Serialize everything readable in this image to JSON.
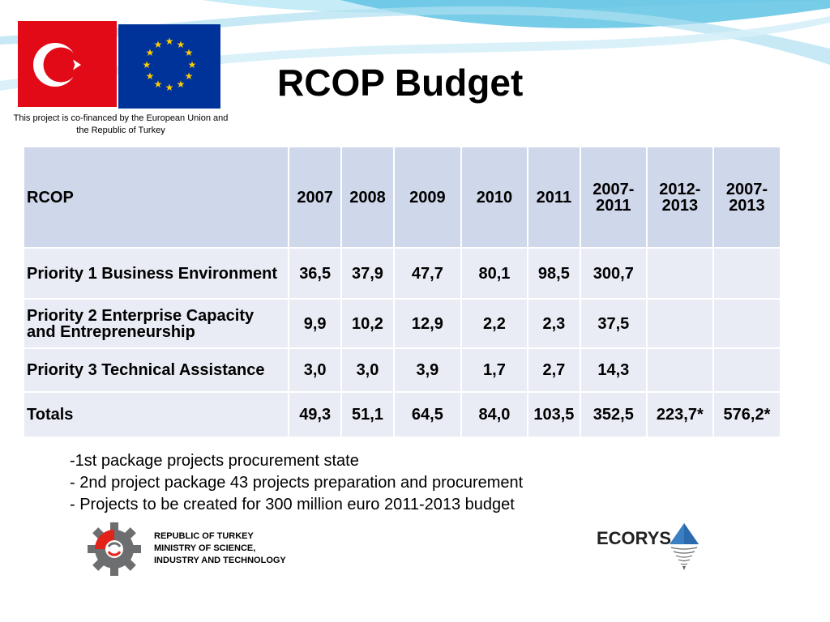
{
  "slide": {
    "title": "RCOP Budget",
    "cofinance_text": "This project is co-financed by the European Union and the Republic of Turkey"
  },
  "logos": {
    "flag_left": "turkey-flag",
    "flag_right": "eu-flag",
    "ministry_lines": [
      "REPUBLIC OF TURKEY",
      "MINISTRY OF SCIENCE,",
      "INDUSTRY AND TECHNOLOGY"
    ],
    "ecorys": "ECORYS"
  },
  "table": {
    "headers": [
      "RCOP",
      "2007",
      "2008",
      "2009",
      "2010",
      "2011",
      "2007-2011",
      "2012-2013",
      "2007-2013"
    ],
    "rows": [
      [
        "Priority 1 Business Environment",
        "36,5",
        "37,9",
        "47,7",
        "80,1",
        "98,5",
        "300,7",
        "",
        ""
      ],
      [
        "Priority 2 Enterprise Capacity and Entrepreneurship",
        "9,9",
        "10,2",
        "12,9",
        "2,2",
        "2,3",
        "37,5",
        "",
        ""
      ],
      [
        "Priority 3 Technical Assistance",
        "3,0",
        "3,0",
        "3,9",
        "1,7",
        "2,7",
        "14,3",
        "",
        ""
      ],
      [
        "Totals",
        "49,3",
        "51,1",
        "64,5",
        "84,0",
        "103,5",
        "352,5",
        "223,7*",
        "576,2*"
      ]
    ]
  },
  "notes": [
    "-1st package projects procurement state",
    "- 2nd project package 43 projects preparation and procurement",
    "- Projects to be created for 300 million euro 2011-2013 budget"
  ],
  "colors": {
    "header_cell": "#cfd7ea",
    "body_cell": "#e9ecf5",
    "turkey_red": "#e30a17",
    "eu_blue": "#003399",
    "eu_star": "#ffcc00",
    "wave": "#8fd3ec"
  }
}
